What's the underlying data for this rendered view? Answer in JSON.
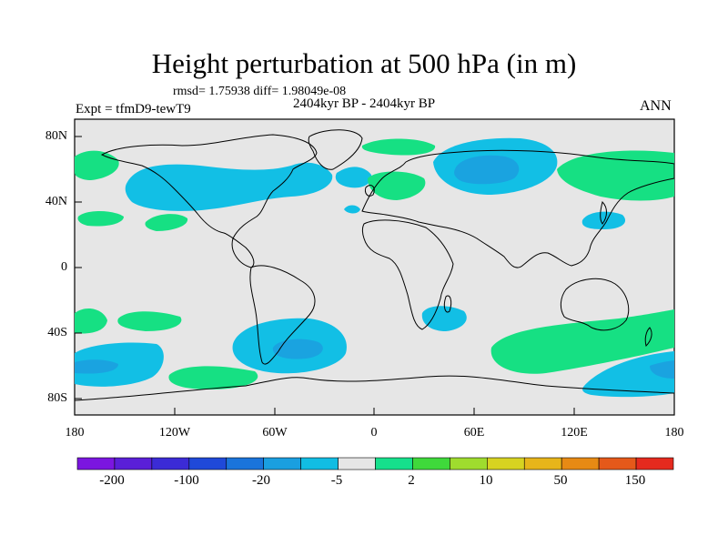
{
  "title": "Height perturbation at 500 hPa (in m)",
  "stats": "rmsd= 1.75938 diff= 1.98049e-08",
  "period": "2404kyr BP - 2404kyr BP",
  "experiment": "Expt = tfmD9-tewT9",
  "season": "ANN",
  "lat_ticks": [
    "80N",
    "40N",
    "0",
    "40S",
    "80S"
  ],
  "lon_ticks": [
    "180",
    "120W",
    "60W",
    "0",
    "60E",
    "120E",
    "180"
  ],
  "colorbar": {
    "labels": [
      "-200",
      "-100",
      "-20",
      "-5",
      "2",
      "10",
      "50",
      "150"
    ],
    "colors": [
      "#7b16e0",
      "#5a1fd8",
      "#3b2bd6",
      "#1f49d9",
      "#1a74db",
      "#1a9fe0",
      "#11bde3",
      "#e6e6e6",
      "#16e08c",
      "#3fd93b",
      "#9fdc2e",
      "#d7d321",
      "#e7b51a",
      "#e78a14",
      "#e5591a",
      "#e52a1e"
    ]
  },
  "map_colors": {
    "background": "#e6e6e6",
    "light_blue": "#12bfe5",
    "mid_blue": "#1aa3e0",
    "green": "#16e083"
  }
}
